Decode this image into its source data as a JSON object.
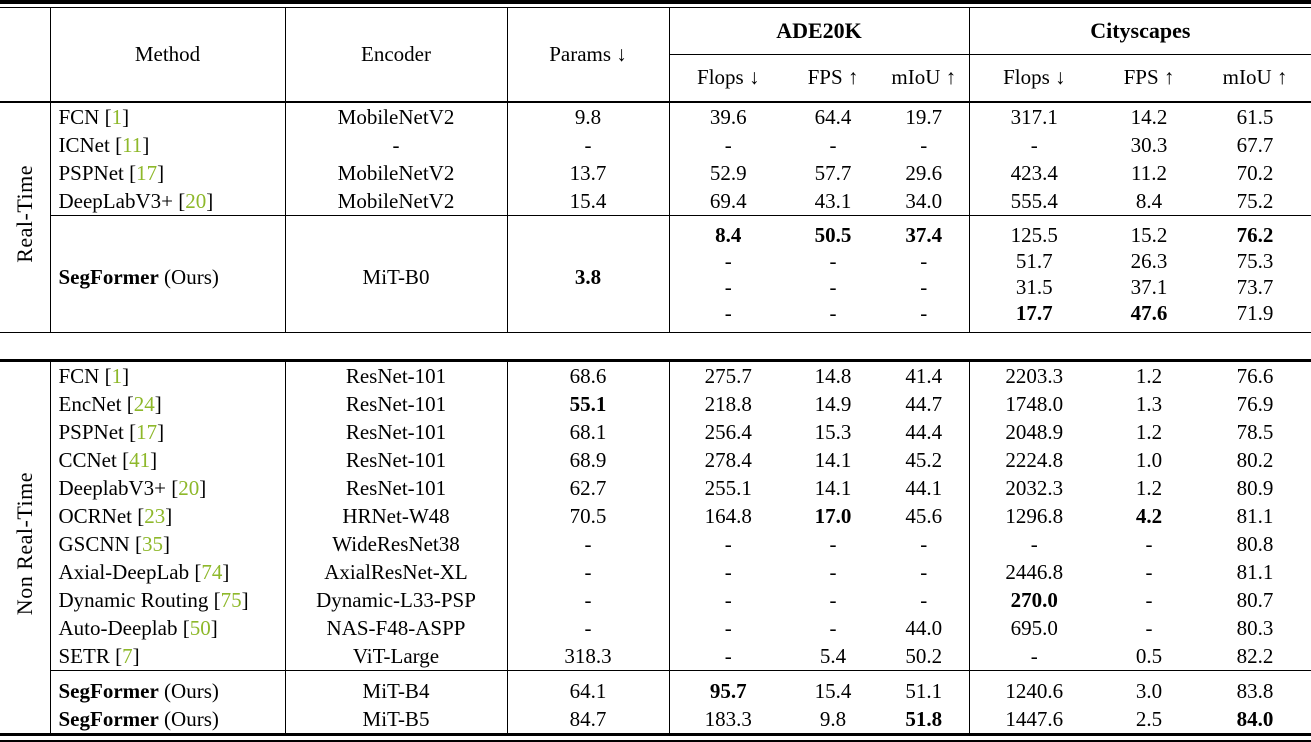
{
  "colors": {
    "citation_green": "#8eb82a",
    "text": "#000000",
    "background": "#ffffff",
    "rule": "#000000"
  },
  "table": {
    "columns": {
      "method": "Method",
      "encoder": "Encoder",
      "params": "Params ↓"
    },
    "groups": [
      "ADE20K",
      "Cityscapes"
    ],
    "sub_columns": [
      "Flops ↓",
      "FPS ↑",
      "mIoU ↑",
      "Flops ↓",
      "FPS ↑",
      "mIoU ↑"
    ],
    "sections": [
      {
        "label": "Real-Time",
        "blocks": [
          {
            "rows": [
              {
                "method": {
                  "name": "FCN",
                  "cite": "1"
                },
                "encoder": "MobileNetV2",
                "params": "9.8",
                "lines": [
                  [
                    "39.6",
                    "64.4",
                    "19.7",
                    "317.1",
                    "14.2",
                    "61.5"
                  ]
                ]
              },
              {
                "method": {
                  "name": "ICNet",
                  "cite": "11"
                },
                "encoder": "-",
                "params": "-",
                "lines": [
                  [
                    "-",
                    "-",
                    "-",
                    "-",
                    "30.3",
                    "67.7"
                  ]
                ]
              },
              {
                "method": {
                  "name": "PSPNet",
                  "cite": "17"
                },
                "encoder": "MobileNetV2",
                "params": "13.7",
                "lines": [
                  [
                    "52.9",
                    "57.7",
                    "29.6",
                    "423.4",
                    "11.2",
                    "70.2"
                  ]
                ]
              },
              {
                "method": {
                  "name": "DeepLabV3+",
                  "cite": "20"
                },
                "encoder": "MobileNetV2",
                "params": "15.4",
                "lines": [
                  [
                    "69.4",
                    "43.1",
                    "34.0",
                    "555.4",
                    "8.4",
                    "75.2"
                  ]
                ]
              }
            ]
          },
          {
            "rows": [
              {
                "method": {
                  "name": "SegFormer",
                  "bold": true,
                  "suffix": "(Ours)"
                },
                "encoder": "MiT-B0",
                "params": {
                  "v": "3.8",
                  "b": true
                },
                "lines": [
                  [
                    {
                      "v": "8.4",
                      "b": true
                    },
                    {
                      "v": "50.5",
                      "b": true
                    },
                    {
                      "v": "37.4",
                      "b": true
                    },
                    "125.5",
                    "15.2",
                    {
                      "v": "76.2",
                      "b": true
                    }
                  ],
                  [
                    "-",
                    "-",
                    "-",
                    "51.7",
                    "26.3",
                    "75.3"
                  ],
                  [
                    "-",
                    "-",
                    "-",
                    "31.5",
                    "37.1",
                    "73.7"
                  ],
                  [
                    "-",
                    "-",
                    "-",
                    {
                      "v": "17.7",
                      "b": true
                    },
                    {
                      "v": "47.6",
                      "b": true
                    },
                    "71.9"
                  ]
                ]
              }
            ]
          }
        ]
      },
      {
        "label": "Non Real-Time",
        "blocks": [
          {
            "rows": [
              {
                "method": {
                  "name": "FCN",
                  "cite": "1"
                },
                "encoder": "ResNet-101",
                "params": "68.6",
                "lines": [
                  [
                    "275.7",
                    "14.8",
                    "41.4",
                    "2203.3",
                    "1.2",
                    "76.6"
                  ]
                ]
              },
              {
                "method": {
                  "name": "EncNet",
                  "cite": "24"
                },
                "encoder": "ResNet-101",
                "params": {
                  "v": "55.1",
                  "b": true
                },
                "lines": [
                  [
                    "218.8",
                    "14.9",
                    "44.7",
                    "1748.0",
                    "1.3",
                    "76.9"
                  ]
                ]
              },
              {
                "method": {
                  "name": "PSPNet",
                  "cite": "17"
                },
                "encoder": "ResNet-101",
                "params": "68.1",
                "lines": [
                  [
                    "256.4",
                    "15.3",
                    "44.4",
                    "2048.9",
                    "1.2",
                    "78.5"
                  ]
                ]
              },
              {
                "method": {
                  "name": "CCNet",
                  "cite": "41"
                },
                "encoder": "ResNet-101",
                "params": "68.9",
                "lines": [
                  [
                    "278.4",
                    "14.1",
                    "45.2",
                    "2224.8",
                    "1.0",
                    "80.2"
                  ]
                ]
              },
              {
                "method": {
                  "name": "DeeplabV3+",
                  "cite": "20"
                },
                "encoder": "ResNet-101",
                "params": "62.7",
                "lines": [
                  [
                    "255.1",
                    "14.1",
                    "44.1",
                    "2032.3",
                    "1.2",
                    "80.9"
                  ]
                ]
              },
              {
                "method": {
                  "name": "OCRNet",
                  "cite": "23"
                },
                "encoder": "HRNet-W48",
                "params": "70.5",
                "lines": [
                  [
                    "164.8",
                    {
                      "v": "17.0",
                      "b": true
                    },
                    "45.6",
                    "1296.8",
                    {
                      "v": "4.2",
                      "b": true
                    },
                    "81.1"
                  ]
                ]
              },
              {
                "method": {
                  "name": "GSCNN",
                  "cite": "35"
                },
                "encoder": "WideResNet38",
                "params": "-",
                "lines": [
                  [
                    "-",
                    "-",
                    "-",
                    "-",
                    "-",
                    "80.8"
                  ]
                ]
              },
              {
                "method": {
                  "name": "Axial-DeepLab",
                  "cite": "74"
                },
                "encoder": "AxialResNet-XL",
                "params": "-",
                "lines": [
                  [
                    "-",
                    "-",
                    "-",
                    "2446.8",
                    "-",
                    "81.1"
                  ]
                ]
              },
              {
                "method": {
                  "name": "Dynamic Routing",
                  "cite": "75"
                },
                "encoder": "Dynamic-L33-PSP",
                "params": "-",
                "lines": [
                  [
                    "-",
                    "-",
                    "-",
                    {
                      "v": "270.0",
                      "b": true
                    },
                    "-",
                    "80.7"
                  ]
                ]
              },
              {
                "method": {
                  "name": "Auto-Deeplab",
                  "cite": "50"
                },
                "encoder": "NAS-F48-ASPP",
                "params": "-",
                "lines": [
                  [
                    "-",
                    "-",
                    "44.0",
                    "695.0",
                    "-",
                    "80.3"
                  ]
                ]
              },
              {
                "method": {
                  "name": "SETR",
                  "cite": "7"
                },
                "encoder": "ViT-Large",
                "params": "318.3",
                "lines": [
                  [
                    "-",
                    "5.4",
                    "50.2",
                    "-",
                    "0.5",
                    "82.2"
                  ]
                ]
              }
            ]
          },
          {
            "rows": [
              {
                "method": {
                  "name": "SegFormer",
                  "bold": true,
                  "suffix": "(Ours)"
                },
                "encoder": "MiT-B4",
                "params": "64.1",
                "lines": [
                  [
                    {
                      "v": "95.7",
                      "b": true
                    },
                    "15.4",
                    "51.1",
                    "1240.6",
                    "3.0",
                    "83.8"
                  ]
                ]
              },
              {
                "method": {
                  "name": "SegFormer",
                  "bold": true,
                  "suffix": "(Ours)"
                },
                "encoder": "MiT-B5",
                "params": "84.7",
                "lines": [
                  [
                    "183.3",
                    "9.8",
                    {
                      "v": "51.8",
                      "b": true
                    },
                    "1447.6",
                    "2.5",
                    {
                      "v": "84.0",
                      "b": true
                    }
                  ]
                ]
              }
            ]
          }
        ]
      }
    ]
  }
}
